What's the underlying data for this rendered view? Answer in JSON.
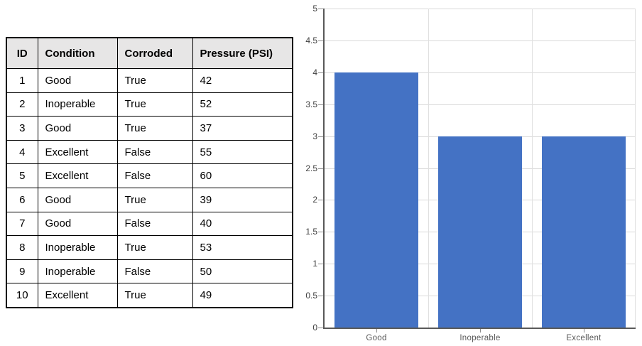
{
  "table": {
    "headers": [
      "ID",
      "Condition",
      "Corroded",
      "Pressure (PSI)"
    ],
    "rows": [
      [
        "1",
        "Good",
        "True",
        "42"
      ],
      [
        "2",
        "Inoperable",
        "True",
        "52"
      ],
      [
        "3",
        "Good",
        "True",
        "37"
      ],
      [
        "4",
        "Excellent",
        "False",
        "55"
      ],
      [
        "5",
        "Excellent",
        "False",
        "60"
      ],
      [
        "6",
        "Good",
        "True",
        "39"
      ],
      [
        "7",
        "Good",
        "False",
        "40"
      ],
      [
        "8",
        "Inoperable",
        "True",
        "53"
      ],
      [
        "9",
        "Inoperable",
        "False",
        "50"
      ],
      [
        "10",
        "Excellent",
        "True",
        "49"
      ]
    ]
  },
  "chart_data": {
    "type": "bar",
    "categories": [
      "Good",
      "Inoperable",
      "Excellent"
    ],
    "values": [
      4,
      3,
      3
    ],
    "title": "",
    "xlabel": "",
    "ylabel": "",
    "ylim": [
      0,
      5
    ],
    "ytick_step": 0.5,
    "grid": true,
    "legend": "none",
    "bar_color": "#4472c4",
    "axis_color": "#595959",
    "gridline_color": "#d9d9d9",
    "y_label_color": "#404040",
    "x_label_color": "#595959"
  }
}
